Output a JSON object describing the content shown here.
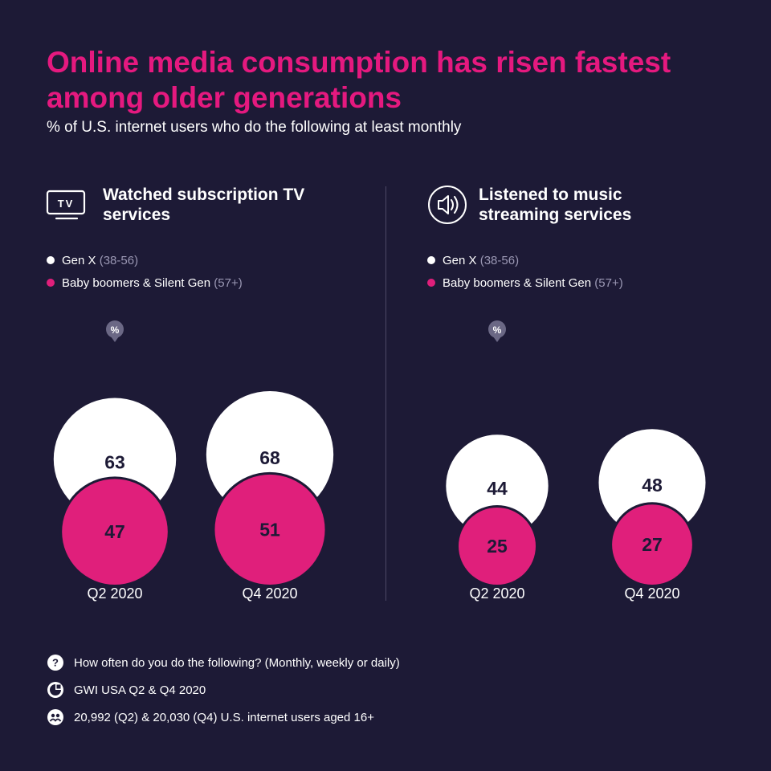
{
  "title": "Online media consumption has risen fastest among older generations",
  "subtitle": "% of U.S. internet users who do the following at least monthly",
  "colors": {
    "background": "#1d1a36",
    "accent": "#e5197f",
    "genx": "#ffffff",
    "boomers": "#e01f7b"
  },
  "panels": [
    {
      "icon": "tv-icon",
      "icon_text": "TV",
      "title": "Watched subscription TV services",
      "legend": [
        {
          "label": "Gen X",
          "age": "(38-56)",
          "color": "#ffffff"
        },
        {
          "label": "Baby boomers & Silent Gen",
          "age": "(57+)",
          "color": "#e01f7b"
        }
      ],
      "percent_marker": "%",
      "chart_data": {
        "type": "bubble",
        "categories": [
          "Q2 2020",
          "Q4 2020"
        ],
        "series": [
          {
            "name": "Gen X (38-56)",
            "values": [
              63,
              68
            ]
          },
          {
            "name": "Baby boomers & Silent Gen (57+)",
            "values": [
              47,
              51
            ]
          }
        ]
      }
    },
    {
      "icon": "speaker-icon",
      "title": "Listened to music streaming services",
      "legend": [
        {
          "label": "Gen X",
          "age": "(38-56)",
          "color": "#ffffff"
        },
        {
          "label": "Baby boomers & Silent Gen",
          "age": "(57+)",
          "color": "#e01f7b"
        }
      ],
      "percent_marker": "%",
      "chart_data": {
        "type": "bubble",
        "categories": [
          "Q2 2020",
          "Q4 2020"
        ],
        "series": [
          {
            "name": "Gen X (38-56)",
            "values": [
              44,
              48
            ]
          },
          {
            "name": "Baby boomers & Silent Gen (57+)",
            "values": [
              25,
              27
            ]
          }
        ]
      }
    }
  ],
  "footer": [
    {
      "icon": "question-icon",
      "text": "How often do you do the following? (Monthly, weekly or daily)"
    },
    {
      "icon": "gwi-logo-icon",
      "text": "GWI USA Q2 & Q4 2020"
    },
    {
      "icon": "people-icon",
      "text": "20,992 (Q2) & 20,030 (Q4) U.S. internet users aged 16+"
    }
  ]
}
